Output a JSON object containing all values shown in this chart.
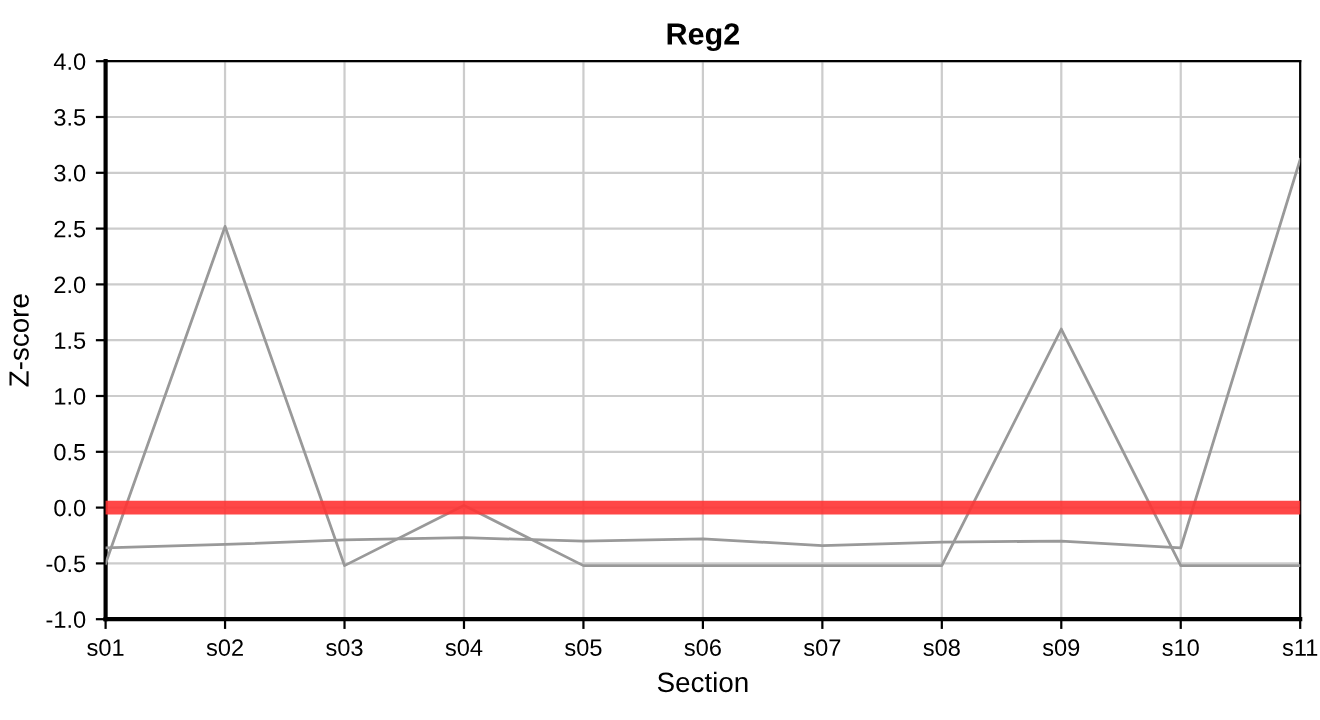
{
  "chart_data": {
    "type": "line",
    "title": "Reg2",
    "xlabel": "Section",
    "ylabel": "Z-score",
    "categories": [
      "s01",
      "s02",
      "s03",
      "s04",
      "s05",
      "s06",
      "s07",
      "s08",
      "s09",
      "s10",
      "s11"
    ],
    "series": [
      {
        "color": "#999999",
        "values": [
          -0.5,
          2.52,
          -0.52,
          0.02,
          -0.52,
          -0.52,
          -0.52,
          -0.52,
          1.6,
          -0.52,
          -0.52
        ]
      },
      {
        "color": "#999999",
        "values": [
          -0.36,
          -0.33,
          -0.29,
          -0.27,
          -0.3,
          -0.28,
          -0.34,
          -0.31,
          -0.3,
          -0.36,
          3.12
        ]
      }
    ],
    "ylim": [
      -1.0,
      4.0
    ],
    "yticks": [
      {
        "value": -1.0,
        "label": "-1.0"
      },
      {
        "value": -0.5,
        "label": "-0.5"
      },
      {
        "value": 0.0,
        "label": "0.0"
      },
      {
        "value": 0.5,
        "label": "0.5"
      },
      {
        "value": 1.0,
        "label": "1.0"
      },
      {
        "value": 1.5,
        "label": "1.5"
      },
      {
        "value": 2.0,
        "label": "2.0"
      },
      {
        "value": 2.5,
        "label": "2.5"
      },
      {
        "value": 3.0,
        "label": "3.0"
      },
      {
        "value": 3.5,
        "label": "3.5"
      },
      {
        "value": 4.0,
        "label": "4.0"
      }
    ],
    "ref_lines": [
      {
        "axis": "y",
        "value": 0.0,
        "color": "#ff3333"
      }
    ],
    "grid": true,
    "legend": false
  }
}
